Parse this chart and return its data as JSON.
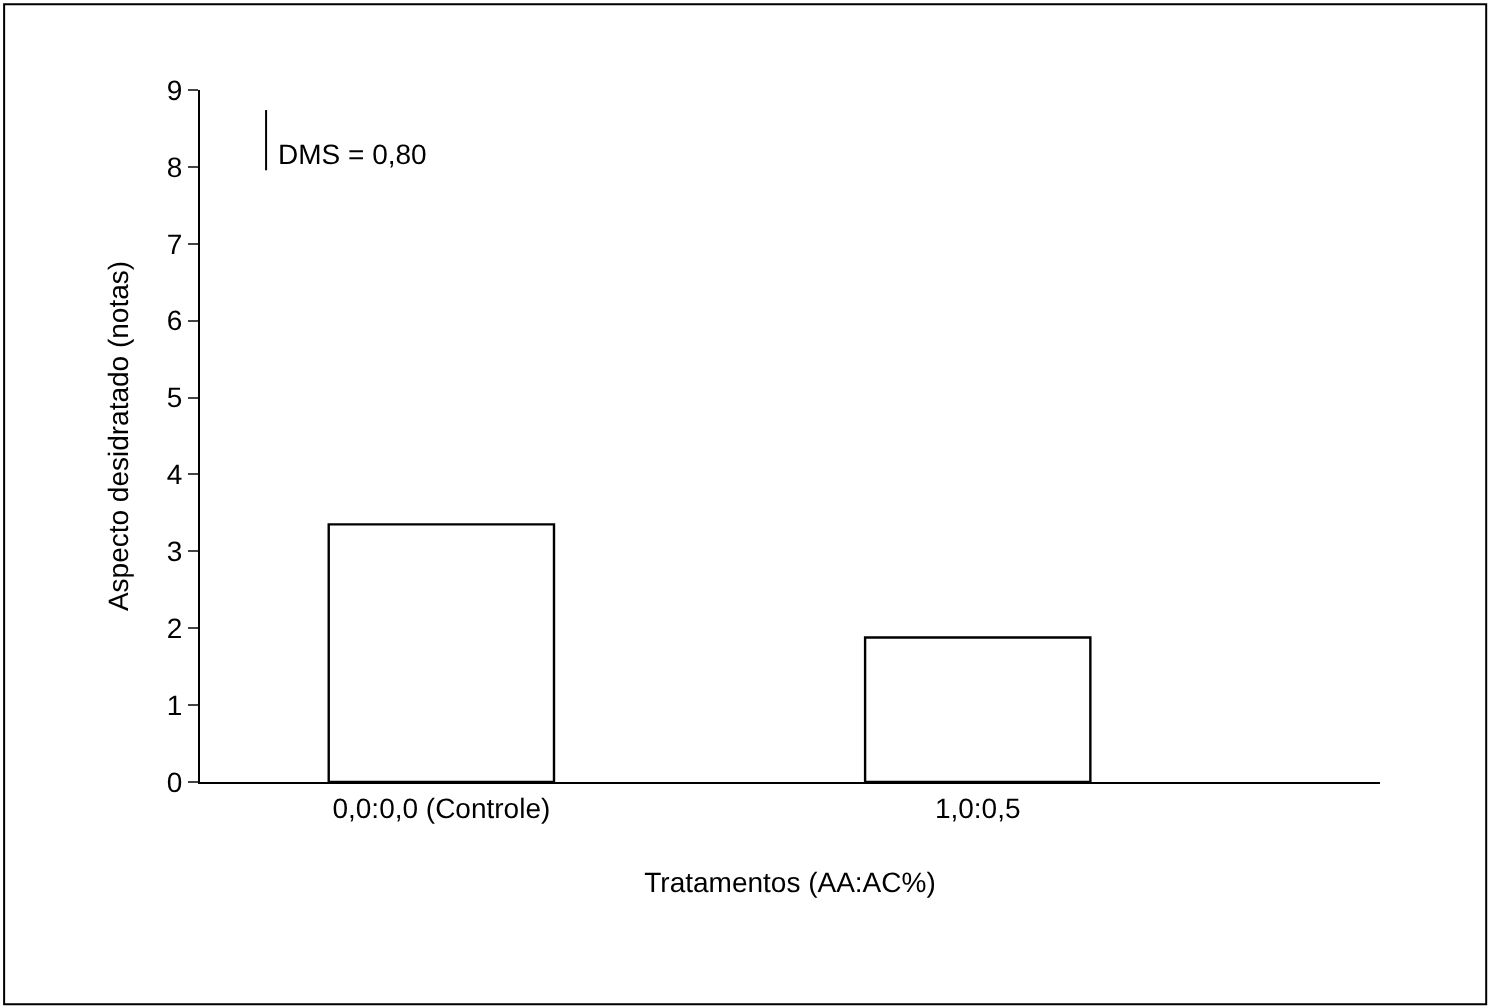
{
  "chart_data": {
    "type": "bar",
    "xlabel": "Tratamentos (AA:AC%)",
    "ylabel": "Aspecto desidratado (notas)",
    "categories": [
      "0,0:0,0 (Controle)",
      "1,0:0,5"
    ],
    "values": [
      3.35,
      1.88
    ],
    "color": "#ffffff",
    "ylim": [
      0,
      9
    ],
    "yticks": [
      0,
      1,
      2,
      3,
      4,
      5,
      6,
      7,
      8,
      9
    ],
    "legend": false,
    "annotations": [
      "DMS = 0,80"
    ]
  }
}
